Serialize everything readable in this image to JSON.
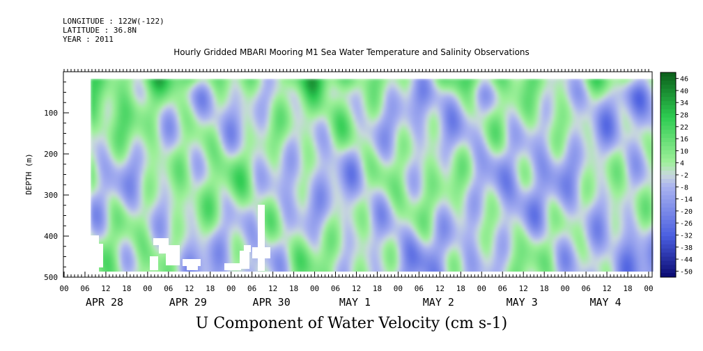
{
  "header": {
    "longitude": "LONGITUDE : 122W(-122)",
    "latitude": "LATITUDE : 36.8N",
    "year": "YEAR : 2011"
  },
  "chart_data": {
    "type": "heatmap",
    "title": "Hourly Gridded MBARI Mooring M1 Sea Water Temperature and Salinity Observations",
    "xlabel": "U Component of Water Velocity (cm s-1)",
    "ylabel": "DEPTH (m)",
    "y_ticks": [
      "100",
      "200",
      "300",
      "400",
      "500"
    ],
    "y_range": [
      0,
      500
    ],
    "y_inverted": true,
    "x_hour_ticks": [
      "00",
      "06",
      "12",
      "18",
      "00",
      "06",
      "12",
      "18",
      "00",
      "06",
      "12",
      "18",
      "00",
      "06",
      "12",
      "18",
      "00",
      "06",
      "12",
      "18",
      "00",
      "06",
      "12",
      "18",
      "00",
      "06",
      "12",
      "18",
      "00"
    ],
    "x_day_labels": [
      "APR 28",
      "APR 29",
      "APR 30",
      "MAY  1",
      "MAY  2",
      "MAY  3",
      "MAY  4"
    ],
    "colorbar_labels": [
      "46",
      "40",
      "34",
      "28",
      "22",
      "16",
      "10",
      "4",
      "-2",
      "-8",
      "-14",
      "-20",
      "-26",
      "-32",
      "-38",
      "-44",
      "-50"
    ],
    "colorbar_range": [
      -50,
      50
    ],
    "colors": {
      "strong_positive": "#0b5e1a",
      "positive": "#2ecc52",
      "weak_positive": "#9ff09a",
      "weak_negative": "#a9b2f0",
      "negative": "#4a5ee0",
      "strong_negative": "#0a0a70"
    }
  }
}
